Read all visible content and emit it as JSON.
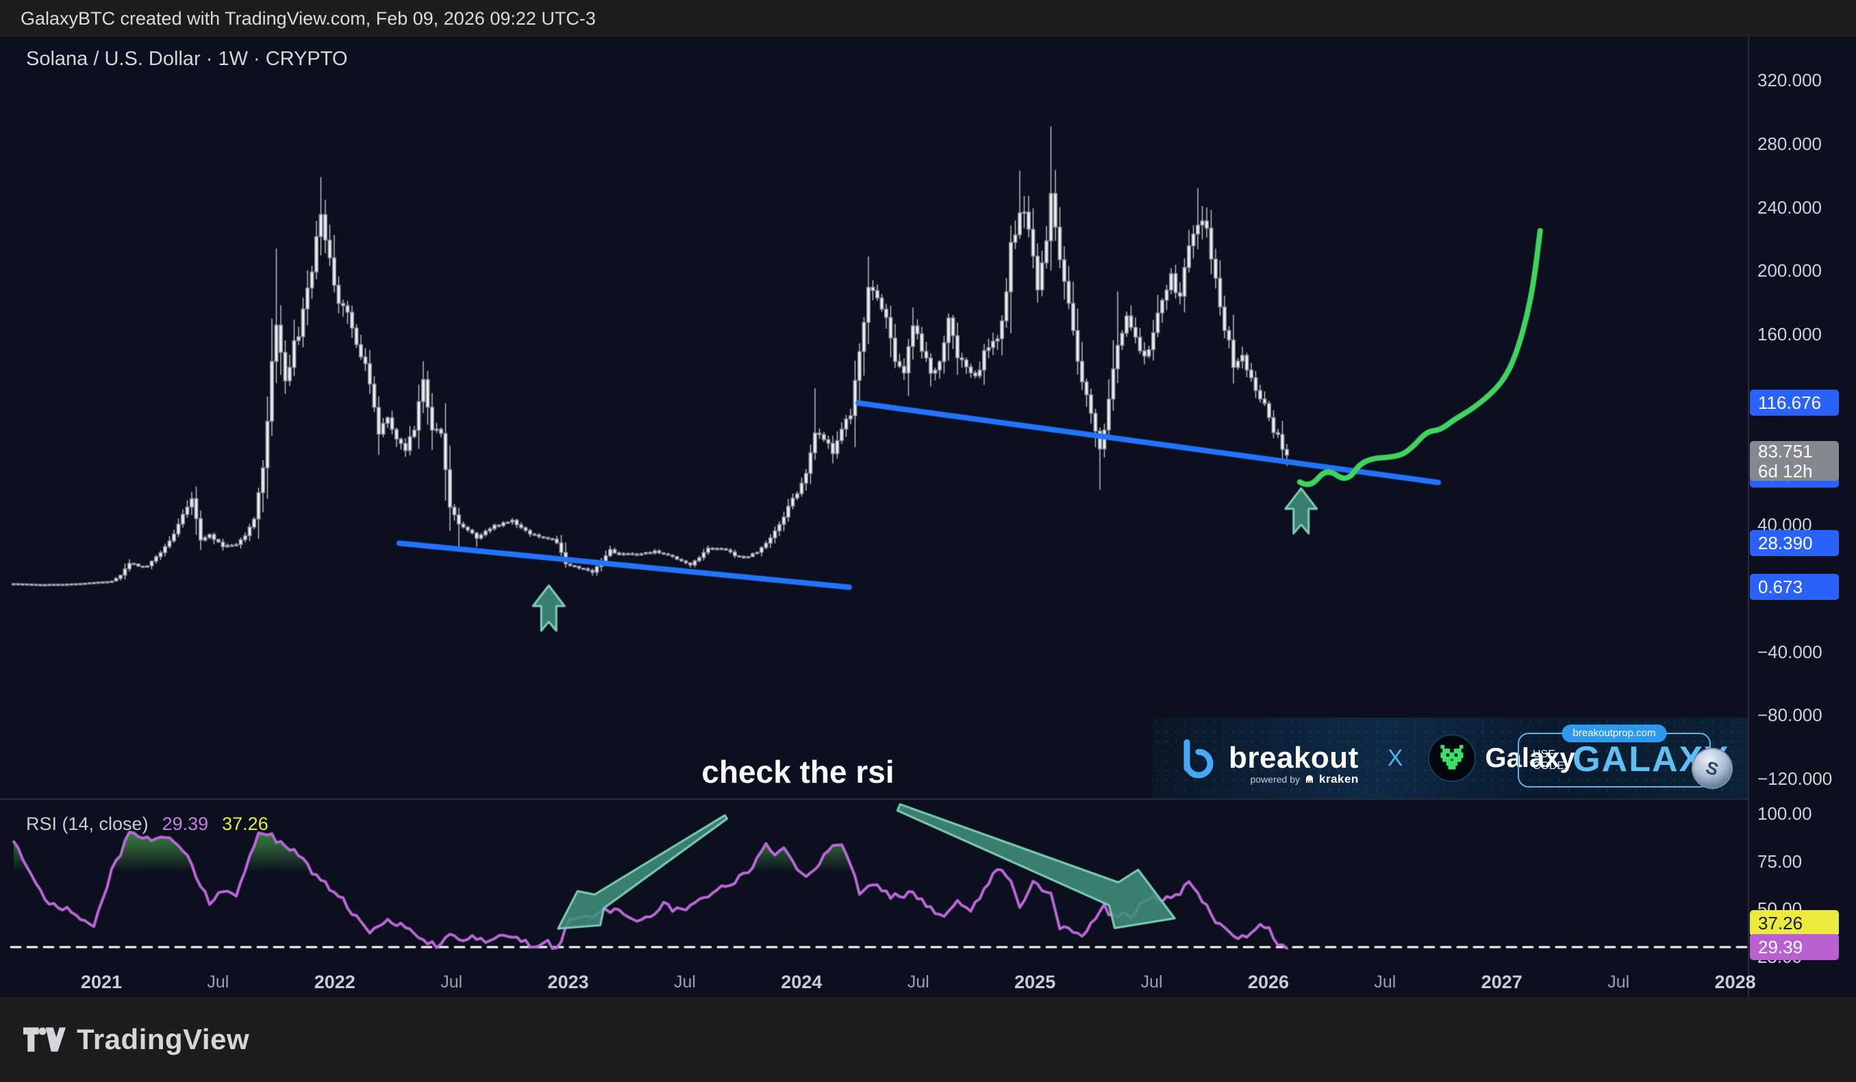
{
  "topbar": {
    "text": "GalaxyBTC created with TradingView.com, Feb 09, 2026 09:22 UTC-3"
  },
  "chart": {
    "symbol_title": "Solana / U.S. Dollar · 1W · CRYPTO"
  },
  "annotation": {
    "check_rsi": "check the rsi"
  },
  "rsi_legend": {
    "label": "RSI (14, close)",
    "current": "29.39",
    "ma": "37.26"
  },
  "price_scale": {
    "labels": [
      "320.000",
      "280.000",
      "240.000",
      "200.000",
      "160.000",
      "40.000",
      "−40.000",
      "−80.000",
      "−120.000"
    ],
    "label_values": [
      320,
      280,
      240,
      200,
      160,
      40,
      -40,
      -80,
      -120
    ],
    "badges": {
      "trendline2_start": {
        "text": "116.676",
        "value": 116.676,
        "color": "#2962ff"
      },
      "last_price": {
        "price": "83.751",
        "countdown": "6d 12h",
        "color": "#85888f"
      },
      "trendline2_end": {
        "text": "66.674",
        "value": 66.674,
        "color": "#2962ff",
        "partially_hidden": true
      },
      "trendline1_start": {
        "text": "28.390",
        "value": 28.39,
        "color": "#2962ff"
      },
      "trendline1_end": {
        "text": "0.673",
        "value": 0.673,
        "color": "#2962ff"
      }
    }
  },
  "rsi_scale": {
    "labels": [
      "100.00",
      "75.00",
      "50.00",
      "25.00"
    ],
    "label_values": [
      100,
      75,
      50,
      25
    ],
    "badges": {
      "ma": {
        "text": "37.26",
        "value": 37.26,
        "bg": "#ebeb3d",
        "fg": "#17181c"
      },
      "current": {
        "text": "29.39",
        "value": 29.39,
        "bg": "#b95fd0",
        "fg": "#ffffff"
      }
    }
  },
  "time_axis": {
    "labels": [
      "2021",
      "Jul",
      "2022",
      "Jul",
      "2023",
      "Jul",
      "2024",
      "Jul",
      "2025",
      "Jul",
      "2026",
      "Jul",
      "2027",
      "Jul",
      "2028"
    ]
  },
  "banner": {
    "brand_left": "breakout",
    "powered_by": "powered by",
    "kraken": "kraken",
    "x": "X",
    "brand_right": "Galaxy",
    "promo": {
      "url": "breakoutprop.com",
      "use_code": "USE\nCODE",
      "code": "GALAXY"
    }
  },
  "footer": {
    "brand": "TradingView"
  },
  "colors": {
    "background": "#0c0f1d",
    "chrome": "#1d1d1d",
    "candle_body": "#eef0f3",
    "candle_border": "#8c919c",
    "wick": "#c7cbd3",
    "trendline_blue": "#2273ff",
    "projection_green": "#3fd35f",
    "arrow_fill": "rgba(64,142,124,0.88)",
    "arrow_stroke": "#7fceb8",
    "rsi_line": "#bb68d8",
    "rsi_overbought_fill": "#4caf50",
    "dashed_line": "#ffffff",
    "badge_blue": "#2962ff",
    "badge_gray": "#85888f",
    "badge_yellow": "#ebeb3d",
    "badge_purple": "#b95fd0",
    "pane_separator": "rgba(60,66,82,0.6)"
  },
  "chart_data": {
    "type": "candlestick",
    "symbol": "SOL/USD",
    "interval": "1W",
    "exchange": "CRYPTO",
    "weeks_total": 287,
    "x_axis": {
      "labels": [
        "2021",
        "Jul",
        "2022",
        "Jul",
        "2023",
        "Jul",
        "2024",
        "Jul",
        "2025",
        "Jul",
        "2026",
        "Jul",
        "2027",
        "Jul",
        "2028"
      ],
      "grid": false
    },
    "y_axis": {
      "tick_values": [
        320,
        280,
        240,
        200,
        160,
        120,
        80,
        40,
        0,
        -40,
        -80,
        -120
      ],
      "visible_range": [
        -155,
        345
      ]
    },
    "price_anchors": [
      [
        0,
        3
      ],
      [
        6,
        2.4
      ],
      [
        12,
        2.6
      ],
      [
        18,
        3.6
      ],
      [
        22,
        4.5
      ],
      [
        24,
        8
      ],
      [
        26,
        16
      ],
      [
        28,
        14
      ],
      [
        30,
        14.5
      ],
      [
        33,
        22
      ],
      [
        36,
        34
      ],
      [
        38,
        46
      ],
      [
        40,
        55
      ],
      [
        41,
        44
      ],
      [
        42,
        31
      ],
      [
        44,
        34
      ],
      [
        47,
        26
      ],
      [
        50,
        28
      ],
      [
        52,
        34
      ],
      [
        54,
        44
      ],
      [
        56,
        74
      ],
      [
        58,
        140
      ],
      [
        59,
        165
      ],
      [
        60,
        150
      ],
      [
        61,
        132
      ],
      [
        63,
        152
      ],
      [
        65,
        172
      ],
      [
        67,
        200
      ],
      [
        69,
        238
      ],
      [
        70,
        224
      ],
      [
        71,
        208
      ],
      [
        73,
        182
      ],
      [
        75,
        172
      ],
      [
        77,
        156
      ],
      [
        79,
        140
      ],
      [
        81,
        112
      ],
      [
        82,
        96
      ],
      [
        84,
        108
      ],
      [
        86,
        96
      ],
      [
        88,
        86
      ],
      [
        90,
        100
      ],
      [
        92,
        132
      ],
      [
        94,
        102
      ],
      [
        96,
        95
      ],
      [
        98,
        52
      ],
      [
        100,
        41
      ],
      [
        102,
        36
      ],
      [
        104,
        32
      ],
      [
        106,
        36
      ],
      [
        108,
        40
      ],
      [
        110,
        41
      ],
      [
        112,
        43
      ],
      [
        114,
        38
      ],
      [
        116,
        34
      ],
      [
        118,
        33
      ],
      [
        120,
        31.5
      ],
      [
        122,
        29
      ],
      [
        124,
        15
      ],
      [
        126,
        13.5
      ],
      [
        128,
        12.5
      ],
      [
        130,
        10
      ],
      [
        132,
        16.5
      ],
      [
        134,
        24
      ],
      [
        136,
        21
      ],
      [
        138,
        22.5
      ],
      [
        140,
        21
      ],
      [
        142,
        22
      ],
      [
        144,
        23.5
      ],
      [
        146,
        21.5
      ],
      [
        148,
        20
      ],
      [
        150,
        17
      ],
      [
        152,
        15
      ],
      [
        154,
        19
      ],
      [
        156,
        25
      ],
      [
        158,
        24.5
      ],
      [
        160,
        24
      ],
      [
        162,
        21
      ],
      [
        164,
        19
      ],
      [
        166,
        21.5
      ],
      [
        168,
        25
      ],
      [
        170,
        32
      ],
      [
        172,
        40
      ],
      [
        174,
        52
      ],
      [
        176,
        61
      ],
      [
        178,
        74
      ],
      [
        180,
        99
      ],
      [
        182,
        94
      ],
      [
        184,
        84
      ],
      [
        186,
        101
      ],
      [
        188,
        110
      ],
      [
        190,
        146
      ],
      [
        192,
        188
      ],
      [
        194,
        182
      ],
      [
        196,
        174
      ],
      [
        198,
        146
      ],
      [
        200,
        136
      ],
      [
        202,
        164
      ],
      [
        204,
        151
      ],
      [
        206,
        136
      ],
      [
        208,
        141
      ],
      [
        210,
        168
      ],
      [
        212,
        147
      ],
      [
        214,
        136
      ],
      [
        216,
        131
      ],
      [
        218,
        149
      ],
      [
        220,
        154
      ],
      [
        222,
        169
      ],
      [
        224,
        214
      ],
      [
        226,
        238
      ],
      [
        228,
        224
      ],
      [
        230,
        192
      ],
      [
        232,
        218
      ],
      [
        233,
        243
      ],
      [
        234,
        232
      ],
      [
        236,
        190
      ],
      [
        238,
        160
      ],
      [
        240,
        132
      ],
      [
        242,
        108
      ],
      [
        244,
        86
      ],
      [
        246,
        118
      ],
      [
        248,
        152
      ],
      [
        250,
        168
      ],
      [
        252,
        156
      ],
      [
        254,
        144
      ],
      [
        256,
        161
      ],
      [
        258,
        184
      ],
      [
        260,
        199
      ],
      [
        262,
        181
      ],
      [
        264,
        219
      ],
      [
        266,
        234
      ],
      [
        268,
        221
      ],
      [
        270,
        196
      ],
      [
        272,
        166
      ],
      [
        274,
        141
      ],
      [
        276,
        146
      ],
      [
        278,
        131
      ],
      [
        280,
        121
      ],
      [
        282,
        106
      ],
      [
        284,
        95
      ],
      [
        285,
        89
      ],
      [
        286,
        83.751
      ]
    ],
    "price_spike_high": [
      [
        40,
        58
      ],
      [
        59,
        214
      ],
      [
        69,
        259
      ],
      [
        92,
        143
      ],
      [
        180,
        126
      ],
      [
        192,
        209
      ],
      [
        226,
        263
      ],
      [
        233,
        291
      ],
      [
        248,
        187
      ],
      [
        266,
        252
      ]
    ],
    "price_spike_low": [
      [
        42,
        27
      ],
      [
        100,
        26
      ],
      [
        104,
        26
      ],
      [
        130,
        8
      ],
      [
        152,
        13
      ],
      [
        244,
        62
      ],
      [
        286,
        77
      ]
    ],
    "last": {
      "price": 83.751,
      "countdown": "6d 12h"
    },
    "trendlines": [
      {
        "from_week": 86.6,
        "from_price": 28.39,
        "to_week": 187.7,
        "to_price": 0.673
      },
      {
        "from_week": 189.7,
        "from_price": 116.676,
        "to_week": 320,
        "to_price": 66.674
      }
    ],
    "projection_points": [
      [
        288.9,
        66.9
      ],
      [
        291.2,
        63.0
      ],
      [
        294.9,
        75.9
      ],
      [
        299.5,
        66.4
      ],
      [
        303.1,
        81.5
      ],
      [
        311.2,
        82.8
      ],
      [
        314.3,
        88.9
      ],
      [
        317.4,
        98.8
      ],
      [
        320.5,
        99.7
      ],
      [
        323.5,
        106.1
      ],
      [
        327.7,
        113.0
      ],
      [
        332.8,
        124.7
      ],
      [
        335.8,
        136.3
      ],
      [
        338.0,
        151.9
      ],
      [
        340.0,
        172.1
      ],
      [
        341.5,
        193.7
      ],
      [
        342.9,
        225.2
      ]
    ],
    "price_arrows_up": [
      {
        "week": 120.2,
        "price": -12.5
      },
      {
        "week": 289.2,
        "price": 48.7
      }
    ],
    "rsi": {
      "period": 14,
      "source": "close",
      "current": 29.39,
      "ma_value": 37.26,
      "oversold_dashed_level": 30,
      "overbought_fill_level": 70,
      "anchors": [
        [
          0,
          85
        ],
        [
          4,
          68
        ],
        [
          7,
          54
        ],
        [
          11,
          51
        ],
        [
          15,
          45
        ],
        [
          18,
          41
        ],
        [
          22,
          70
        ],
        [
          26,
          89
        ],
        [
          31,
          87
        ],
        [
          35,
          88
        ],
        [
          39,
          78
        ],
        [
          41,
          66
        ],
        [
          44,
          54
        ],
        [
          47,
          60
        ],
        [
          50,
          57
        ],
        [
          55,
          91
        ],
        [
          58,
          88
        ],
        [
          63,
          80
        ],
        [
          67,
          70
        ],
        [
          70,
          63
        ],
        [
          73,
          58
        ],
        [
          76,
          48
        ],
        [
          80,
          39
        ],
        [
          84,
          44
        ],
        [
          88,
          40
        ],
        [
          91,
          35
        ],
        [
          96,
          30
        ],
        [
          98,
          37
        ],
        [
          101,
          34
        ],
        [
          103,
          36
        ],
        [
          106,
          32
        ],
        [
          108,
          34
        ],
        [
          111,
          36
        ],
        [
          114,
          33
        ],
        [
          117,
          30
        ],
        [
          120,
          32
        ],
        [
          122,
          28.5
        ],
        [
          125,
          46
        ],
        [
          129,
          45
        ],
        [
          132,
          48
        ],
        [
          135,
          50
        ],
        [
          139,
          43
        ],
        [
          142,
          46
        ],
        [
          144,
          48
        ],
        [
          146,
          54
        ],
        [
          148,
          50
        ],
        [
          151,
          50
        ],
        [
          153,
          54
        ],
        [
          155,
          57
        ],
        [
          158,
          59
        ],
        [
          160,
          62
        ],
        [
          163,
          66
        ],
        [
          165,
          70
        ],
        [
          169,
          83
        ],
        [
          171,
          78
        ],
        [
          173,
          82
        ],
        [
          176,
          70
        ],
        [
          178,
          68
        ],
        [
          180,
          72
        ],
        [
          183,
          80
        ],
        [
          186,
          85
        ],
        [
          188,
          72
        ],
        [
          190,
          59
        ],
        [
          193,
          62
        ],
        [
          195,
          60
        ],
        [
          197,
          57
        ],
        [
          199,
          56
        ],
        [
          201,
          59
        ],
        [
          203,
          57
        ],
        [
          206,
          50
        ],
        [
          209,
          46
        ],
        [
          212,
          54
        ],
        [
          215,
          48
        ],
        [
          218,
          60
        ],
        [
          221,
          71
        ],
        [
          224,
          66
        ],
        [
          226,
          51
        ],
        [
          229,
          64
        ],
        [
          231,
          60
        ],
        [
          233,
          58
        ],
        [
          235,
          40
        ],
        [
          238,
          38
        ],
        [
          240,
          35
        ],
        [
          242,
          43
        ],
        [
          245,
          51
        ],
        [
          247,
          46
        ],
        [
          249,
          48
        ],
        [
          251,
          44
        ],
        [
          253,
          52
        ],
        [
          256,
          56
        ],
        [
          258,
          54
        ],
        [
          261,
          57
        ],
        [
          264,
          63
        ],
        [
          266,
          58
        ],
        [
          267,
          55
        ],
        [
          270,
          44
        ],
        [
          273,
          37
        ],
        [
          275,
          36
        ],
        [
          277,
          36
        ],
        [
          280,
          42
        ],
        [
          282,
          41
        ],
        [
          284,
          30
        ],
        [
          286,
          29.39
        ]
      ],
      "arrows": [
        {
          "tail": [
            160,
            98.2
          ],
          "tip": [
            122.3,
            39.7
          ],
          "tail_hw": 3,
          "body_hw": 12,
          "barb_hw": 30,
          "head_len": 72,
          "barb_len": 54
        },
        {
          "tail": [
            198.8,
            103.2
          ],
          "tip": [
            260.8,
            45.1
          ],
          "tail_hw": 5,
          "body_hw": 18,
          "barb_hw": 46,
          "head_len": 96,
          "barb_len": 76
        }
      ]
    }
  }
}
